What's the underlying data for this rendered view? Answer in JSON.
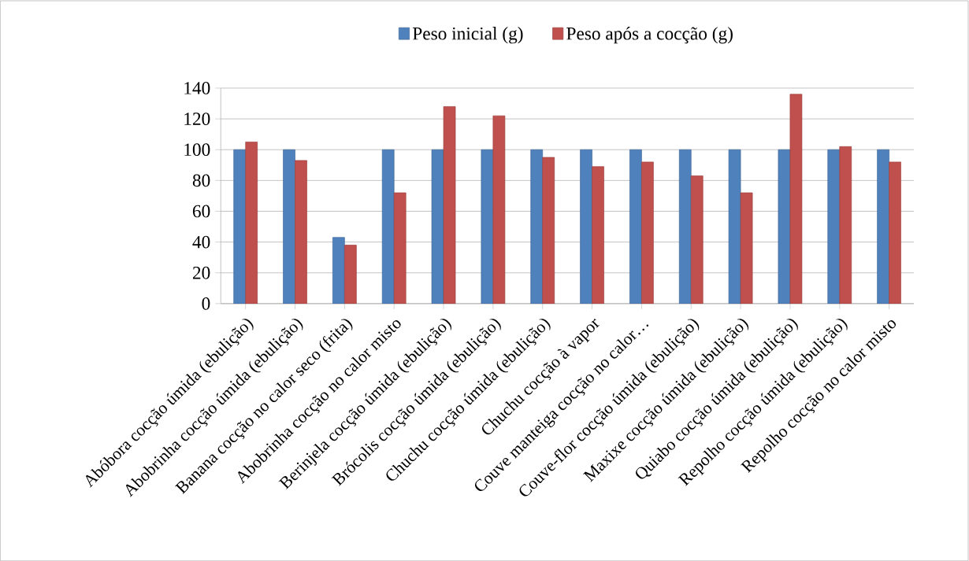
{
  "chart_data": {
    "type": "bar",
    "categories": [
      "Abóbora cocção úmida (ebulição)",
      "Abobrinha cocção úmida (ebulição)",
      "Banana cocção no calor seco (frita)",
      "Abobrinha cocção no calor misto",
      "Berinjela cocção úmida (ebulição)",
      "Brócolis cocção úmida (ebulição)",
      "Chuchu cocção úmida (ebulição)",
      "Chuchu cocção à vapor",
      "Couve manteiga cocção no calor…",
      "Couve-flor cocção úmida (ebulição)",
      "Maxixe cocção úmida (ebulição)",
      "Quiabo cocção úmida (ebulição)",
      "Repolho cocção úmida (ebulição)",
      "Repolho cocção no calor misto"
    ],
    "series": [
      {
        "name": "Peso inicial (g)",
        "color": "#4f81bd",
        "values": [
          100,
          100,
          43,
          100,
          100,
          100,
          100,
          100,
          100,
          100,
          100,
          100,
          100,
          100
        ]
      },
      {
        "name": "Peso após a cocção (g)",
        "color": "#c0504d",
        "values": [
          105,
          93,
          38,
          72,
          128,
          122,
          95,
          89,
          92,
          83,
          72,
          136,
          102,
          92
        ]
      }
    ],
    "ylim": [
      0,
      140
    ],
    "yticks": [
      0,
      20,
      40,
      60,
      80,
      100,
      120,
      140
    ],
    "grid": "y",
    "legend": "top"
  }
}
